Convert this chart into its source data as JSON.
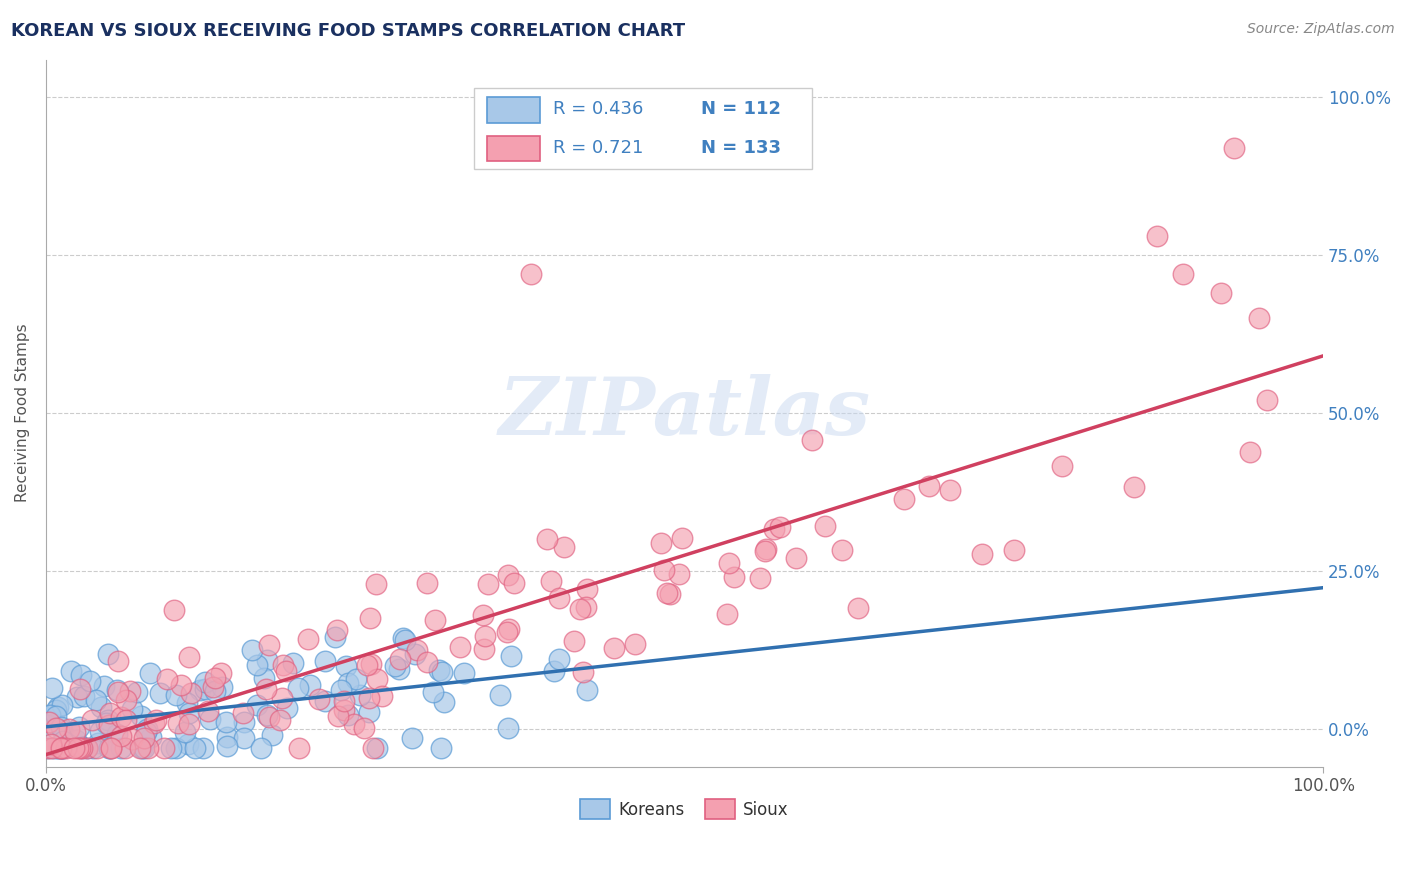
{
  "title": "KOREAN VS SIOUX RECEIVING FOOD STAMPS CORRELATION CHART",
  "source": "Source: ZipAtlas.com",
  "ylabel": "Receiving Food Stamps",
  "xlim": [
    0.0,
    1.0
  ],
  "ylim": [
    -0.06,
    1.06
  ],
  "ytick_labels": [
    "0.0%",
    "25.0%",
    "50.0%",
    "75.0%",
    "100.0%"
  ],
  "ytick_positions": [
    0.0,
    0.25,
    0.5,
    0.75,
    1.0
  ],
  "korean_R": "0.436",
  "korean_N": "112",
  "sioux_R": "0.721",
  "sioux_N": "133",
  "korean_color": "#a8c8e8",
  "sioux_color": "#f4a0b0",
  "korean_edge_color": "#5b9bd5",
  "sioux_edge_color": "#e06080",
  "korean_line_color": "#3070b0",
  "sioux_line_color": "#d04060",
  "title_color": "#1a3060",
  "right_axis_color": "#4080c0",
  "watermark_color": "#c8d8f0",
  "background_color": "#ffffff",
  "grid_color": "#cccccc",
  "seed": 42
}
